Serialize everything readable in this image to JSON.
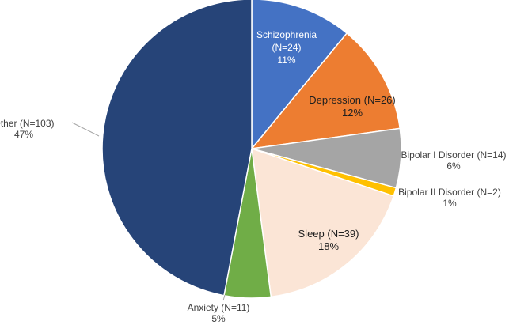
{
  "chart_data": {
    "type": "pie",
    "title": "",
    "slices": [
      {
        "label": "Schizophrenia",
        "n_text": "(N=24)",
        "percent_text": "11%",
        "value": 24,
        "color": "#4472c4",
        "label_color": "#ffffff",
        "label_mode": "inside-stacked"
      },
      {
        "label": "Depression",
        "n_text": "(N=26)",
        "percent_text": "12%",
        "value": 26,
        "color": "#ed7d31",
        "label_color": "#1f1f1f",
        "label_mode": "inside"
      },
      {
        "label": "Bipolar I Disorder",
        "n_text": "(N=14)",
        "percent_text": "6%",
        "value": 14,
        "color": "#a5a5a5",
        "label_color": "#404040",
        "label_mode": "outside"
      },
      {
        "label": "Bipolar II Disorder",
        "n_text": "(N=2)",
        "percent_text": "1%",
        "value": 2,
        "color": "#ffc000",
        "label_color": "#404040",
        "label_mode": "outside"
      },
      {
        "label": "Sleep",
        "n_text": "(N=39)",
        "percent_text": "18%",
        "value": 39,
        "color": "#fbe5d6",
        "label_color": "#1f1f1f",
        "label_mode": "inside"
      },
      {
        "label": "Anxiety",
        "n_text": "(N=11)",
        "percent_text": "5%",
        "value": 11,
        "color": "#70ad47",
        "label_color": "#404040",
        "label_mode": "outside"
      },
      {
        "label": "Other",
        "n_text": "(N=103)",
        "percent_text": "47%",
        "value": 103,
        "color": "#264478",
        "label_color": "#404040",
        "label_mode": "outside"
      }
    ],
    "start_angle": "12 o'clock",
    "direction": "clockwise",
    "legend": "none"
  }
}
